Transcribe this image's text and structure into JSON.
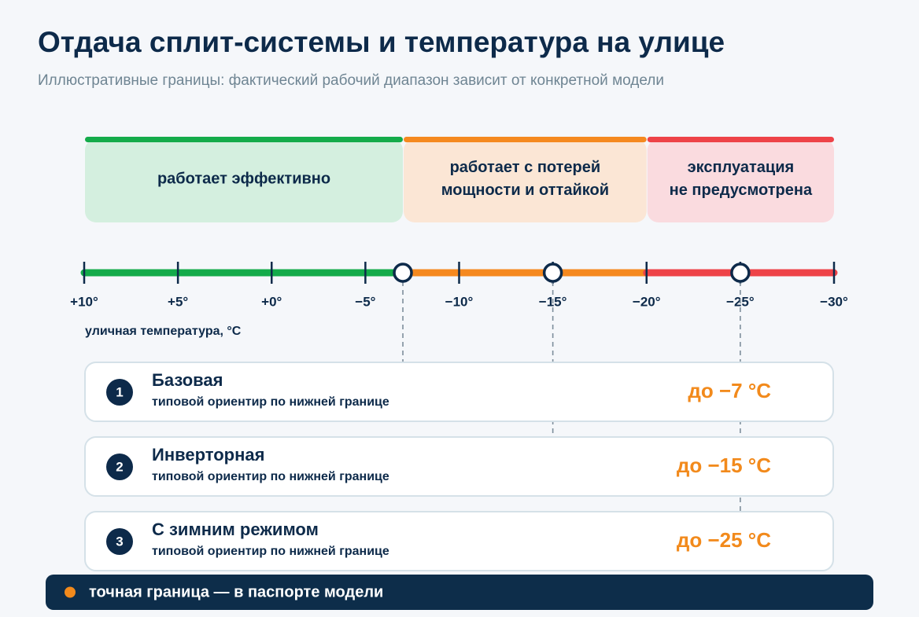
{
  "title": "Отдача сплит-системы и температура на улице",
  "subtitle": "Иллюстративные границы: фактический рабочий диапазон зависит от конкретной модели",
  "zones": [
    {
      "label_lines": [
        "работает эффективно"
      ],
      "from": 10,
      "to": -7,
      "color": "#14ab4a",
      "fill": "#d4efdf"
    },
    {
      "label_lines": [
        "работает с потерей",
        "мощности и оттайкой"
      ],
      "from": -7,
      "to": -20,
      "color": "#f5891f",
      "fill": "#fbe6d5"
    },
    {
      "label_lines": [
        "эксплуатация",
        "не предусмотрена"
      ],
      "from": -20,
      "to": -30,
      "color": "#ee4348",
      "fill": "#fadbdf"
    }
  ],
  "scale": {
    "range": [
      10,
      -30
    ],
    "ticks": [
      {
        "value": 10,
        "label": "+10°"
      },
      {
        "value": 5,
        "label": "+5°"
      },
      {
        "value": 0,
        "label": "+0°"
      },
      {
        "value": -5,
        "label": "−5°"
      },
      {
        "value": -10,
        "label": "−10°"
      },
      {
        "value": -15,
        "label": "−15°"
      },
      {
        "value": -20,
        "label": "−20°"
      },
      {
        "value": -25,
        "label": "−25°"
      },
      {
        "value": -30,
        "label": "−30°"
      }
    ],
    "axis_label": "уличная температура, °C"
  },
  "cards": [
    {
      "number": "1",
      "name": "Базовая",
      "note": "типовой ориентир по нижней границе",
      "limit": -7,
      "limit_label": "до −7 °C"
    },
    {
      "number": "2",
      "name": "Инверторная",
      "note": "типовой ориентир по нижней границе",
      "limit": -15,
      "limit_label": "до −15 °C"
    },
    {
      "number": "3",
      "name": "С зимним режимом",
      "note": "типовой ориентир по нижней границе",
      "limit": -25,
      "limit_label": "до −25 °C"
    }
  ],
  "footer": "точная граница — в паспорте модели"
}
